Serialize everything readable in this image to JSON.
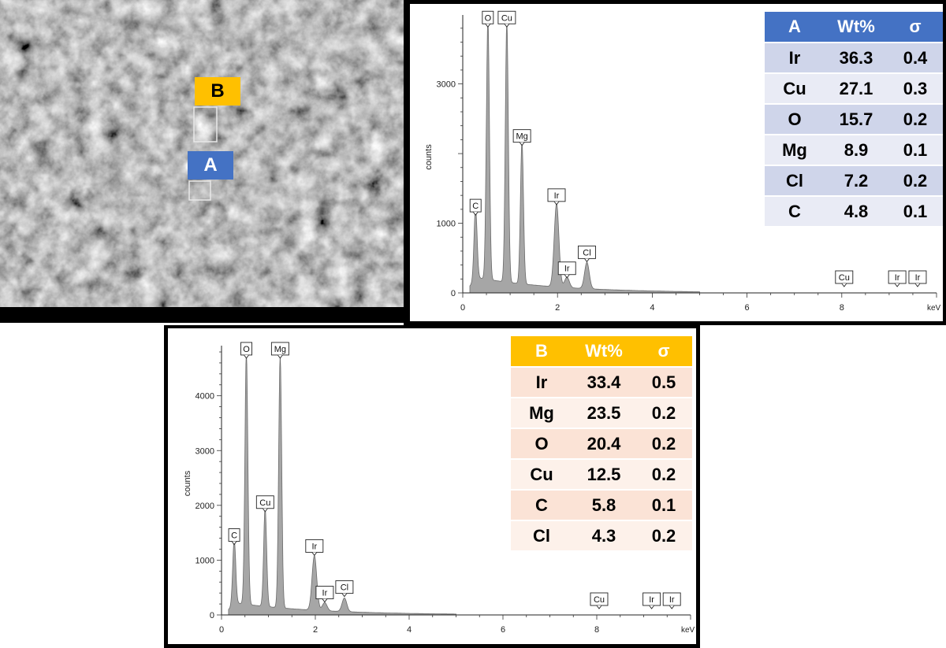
{
  "sem": {
    "label_a": "A",
    "label_b": "B",
    "color_a": "#4472c4",
    "color_b": "#ffc000"
  },
  "chart_data": [
    {
      "type": "line",
      "name": "A",
      "xlabel": "keV",
      "ylabel": "counts",
      "xlim": [
        0,
        10
      ],
      "ylim": [
        0,
        3900
      ],
      "x_ticks": [
        "0",
        "2",
        "4",
        "6",
        "8"
      ],
      "y_ticks": [
        "0",
        "1000",
        "3000"
      ],
      "peaks": [
        {
          "label": "C",
          "kev": 0.27,
          "counts": 1050
        },
        {
          "label": "O",
          "kev": 0.53,
          "counts": 3750
        },
        {
          "label": "Cu",
          "kev": 0.93,
          "counts": 3750
        },
        {
          "label": "Mg",
          "kev": 1.25,
          "counts": 2050
        },
        {
          "label": "Ir",
          "kev": 1.98,
          "counts": 1200
        },
        {
          "label": "Ir",
          "kev": 2.2,
          "counts": 150
        },
        {
          "label": "Cl",
          "kev": 2.62,
          "counts": 380
        },
        {
          "label": "Cu",
          "kev": 8.05,
          "counts": 0
        },
        {
          "label": "Ir",
          "kev": 9.17,
          "counts": 0
        },
        {
          "label": "Ir",
          "kev": 9.6,
          "counts": 0
        }
      ],
      "table": {
        "header": [
          "A",
          "Wt%",
          "σ"
        ],
        "rows": [
          [
            "Ir",
            "36.3",
            "0.4"
          ],
          [
            "Cu",
            "27.1",
            "0.3"
          ],
          [
            "O",
            "15.7",
            "0.2"
          ],
          [
            "Mg",
            "8.9",
            "0.1"
          ],
          [
            "Cl",
            "7.2",
            "0.2"
          ],
          [
            "C",
            "4.8",
            "0.1"
          ]
        ],
        "header_color": "#4472c4",
        "row_colors": [
          "#cfd5ea",
          "#e9ebf5"
        ]
      }
    },
    {
      "type": "line",
      "name": "B",
      "xlabel": "keV",
      "ylabel": "counts",
      "xlim": [
        0,
        10
      ],
      "ylim": [
        0,
        4800
      ],
      "x_ticks": [
        "0",
        "2",
        "4",
        "6",
        "8"
      ],
      "y_ticks": [
        "0",
        "1000",
        "2000",
        "3000",
        "4000"
      ],
      "peaks": [
        {
          "label": "C",
          "kev": 0.27,
          "counts": 1200
        },
        {
          "label": "O",
          "kev": 0.53,
          "counts": 4600
        },
        {
          "label": "Cu",
          "kev": 0.93,
          "counts": 1800
        },
        {
          "label": "Mg",
          "kev": 1.25,
          "counts": 4600
        },
        {
          "label": "Ir",
          "kev": 1.98,
          "counts": 1000
        },
        {
          "label": "Ir",
          "kev": 2.2,
          "counts": 150
        },
        {
          "label": "Cl",
          "kev": 2.62,
          "counts": 250
        },
        {
          "label": "Cu",
          "kev": 8.05,
          "counts": 0
        },
        {
          "label": "Ir",
          "kev": 9.17,
          "counts": 0
        },
        {
          "label": "Ir",
          "kev": 9.6,
          "counts": 0
        }
      ],
      "table": {
        "header": [
          "B",
          "Wt%",
          "σ"
        ],
        "rows": [
          [
            "Ir",
            "33.4",
            "0.5"
          ],
          [
            "Mg",
            "23.5",
            "0.2"
          ],
          [
            "O",
            "20.4",
            "0.2"
          ],
          [
            "Cu",
            "12.5",
            "0.2"
          ],
          [
            "C",
            "5.8",
            "0.1"
          ],
          [
            "Cl",
            "4.3",
            "0.2"
          ]
        ],
        "header_color": "#ffc000",
        "row_colors": [
          "#fbe3d6",
          "#fdf1ea"
        ]
      }
    }
  ]
}
